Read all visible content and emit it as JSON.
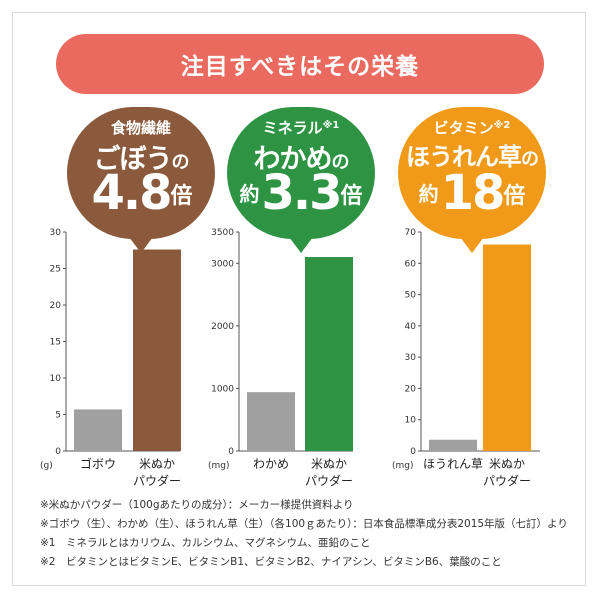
{
  "header": {
    "title": "注目すべきはその栄養"
  },
  "colors": {
    "banner": "#ea6a5f",
    "brown": "#8b5a3c",
    "green": "#2e9444",
    "orange": "#f19a1a",
    "gray": "#a0a0a0"
  },
  "bubbles": [
    {
      "line1": "食物繊維",
      "line1_sup": "",
      "line2_main": "ごぼう",
      "line2_suffix": "の",
      "prefix": "",
      "ratio": "4.8",
      "unit": "倍"
    },
    {
      "line1": "ミネラル",
      "line1_sup": "※1",
      "line2_main": "わかめ",
      "line2_suffix": "の",
      "prefix": "約",
      "ratio": "3.3",
      "unit": "倍"
    },
    {
      "line1": "ビタミン",
      "line1_sup": "※2",
      "line2_main": "ほうれん草",
      "line2_suffix": "の",
      "prefix": "約",
      "ratio": "18",
      "unit": "倍"
    }
  ],
  "chart_data": [
    {
      "type": "bar",
      "categories": [
        "ゴボウ",
        "米ぬか\nパウダー"
      ],
      "values": [
        5.7,
        27.6
      ],
      "colors": [
        "#a0a0a0",
        "#8b5a3c"
      ],
      "ylabel": "(g)",
      "ylim": [
        0,
        30
      ],
      "yticks": [
        0,
        5,
        10,
        15,
        20,
        25,
        30
      ]
    },
    {
      "type": "bar",
      "categories": [
        "わかめ",
        "米ぬか\nパウダー"
      ],
      "values": [
        940,
        3100
      ],
      "colors": [
        "#a0a0a0",
        "#2e9444"
      ],
      "ylabel": "(mg)",
      "ylim": [
        0,
        3500
      ],
      "yticks": [
        0,
        1000,
        2000,
        3000,
        3500
      ]
    },
    {
      "type": "bar",
      "categories": [
        "ほうれん草",
        "米ぬか\nパウダー"
      ],
      "values": [
        3.6,
        66
      ],
      "colors": [
        "#a0a0a0",
        "#f19a1a"
      ],
      "ylabel": "(mg)",
      "ylim": [
        0,
        70
      ],
      "yticks": [
        0,
        10,
        20,
        30,
        40,
        50,
        60,
        70
      ]
    }
  ],
  "notes": [
    "※米ぬかパウダー（100gあたりの成分）：メーカー様提供資料より",
    "※ゴボウ（生）、わかめ（生）、ほうれん草（生）（各100ｇあたり）：日本食品標準成分表2015年版（七訂）より",
    "※1　ミネラルとはカリウム、カルシウム、マグネシウム、亜鉛のこと",
    "※2　ビタミンとはビタミンE、ビタミンB1、ビタミンB2、ナイアシン、ビタミンB6、葉酸のこと"
  ]
}
